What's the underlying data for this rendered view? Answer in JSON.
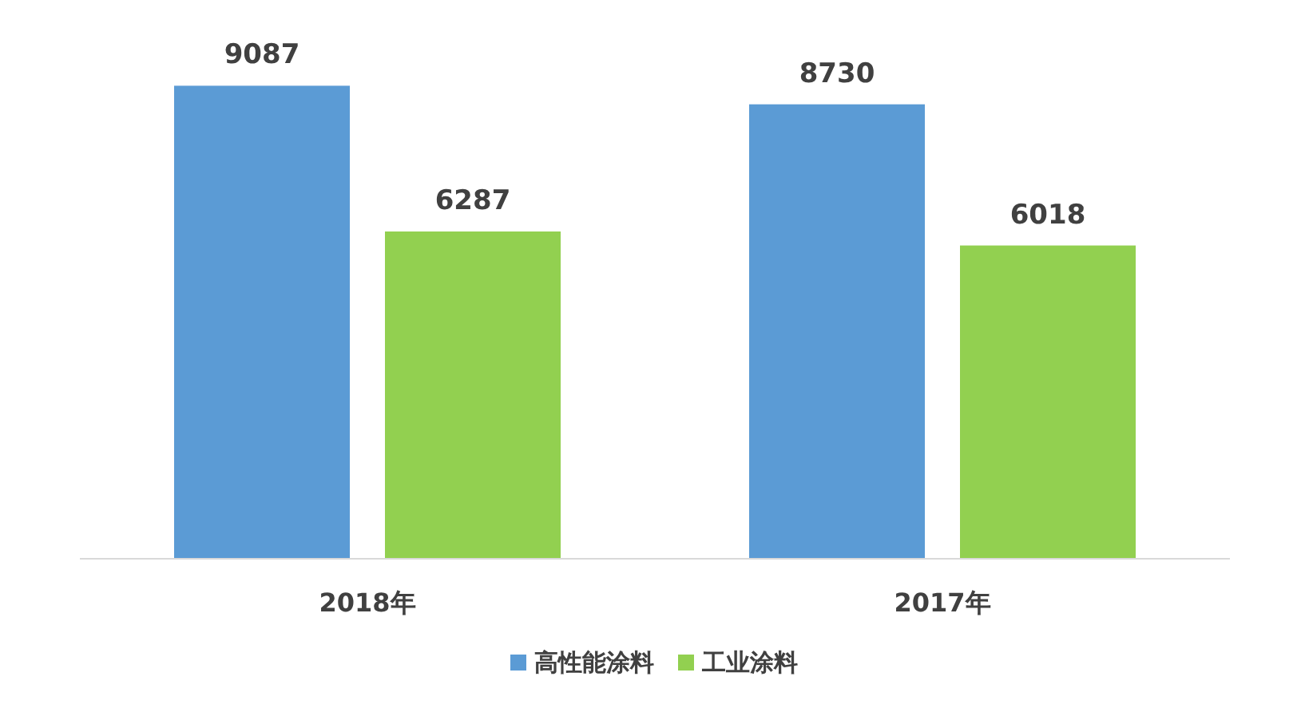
{
  "chart_data": {
    "type": "bar",
    "categories": [
      "2018年",
      "2017年"
    ],
    "series": [
      {
        "name": "高性能涂料",
        "color": "#5b9bd5",
        "values": [
          9087,
          8730
        ]
      },
      {
        "name": "工业涂料",
        "color": "#92d050",
        "values": [
          6287,
          6018
        ]
      }
    ],
    "data_labels": true,
    "legend": "bottom"
  }
}
